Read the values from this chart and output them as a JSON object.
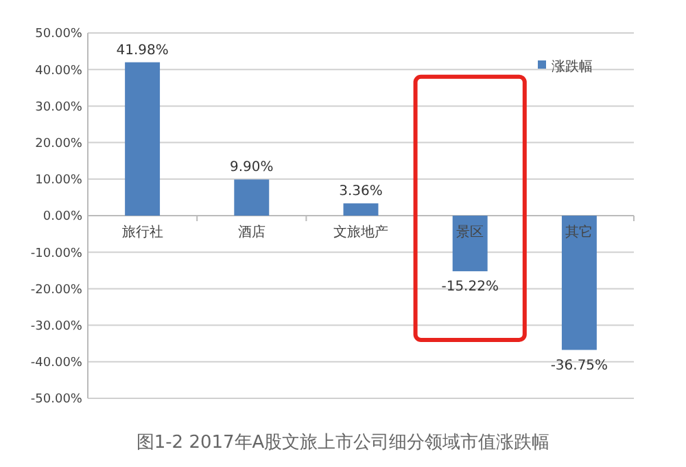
{
  "chart_data": {
    "type": "bar",
    "title": "图1-2  2017年A股文旅上市公司细分领域市值涨跌幅",
    "categories": [
      "旅行社",
      "酒店",
      "文旅地产",
      "景区",
      "其它"
    ],
    "series": [
      {
        "name": "涨跌幅",
        "color": "#4f81bd",
        "values": [
          41.98,
          9.9,
          3.36,
          -15.22,
          -36.75
        ],
        "value_labels": [
          "41.98%",
          "9.90%",
          "3.36%",
          "-15.22%",
          "-36.75%"
        ]
      }
    ],
    "ylim": [
      -50,
      50
    ],
    "yticks": [
      {
        "value": -50,
        "label": "-50.00%"
      },
      {
        "value": -40,
        "label": "-40.00%"
      },
      {
        "value": -30,
        "label": "-30.00%"
      },
      {
        "value": -20,
        "label": "-20.00%"
      },
      {
        "value": -10,
        "label": "-10.00%"
      },
      {
        "value": 0,
        "label": "0.00%"
      },
      {
        "value": 10,
        "label": "10.00%"
      },
      {
        "value": 20,
        "label": "20.00%"
      },
      {
        "value": 30,
        "label": "30.00%"
      },
      {
        "value": 40,
        "label": "40.00%"
      },
      {
        "value": 50,
        "label": "50.00%"
      }
    ],
    "grid": "y",
    "legend": "top right"
  }
}
